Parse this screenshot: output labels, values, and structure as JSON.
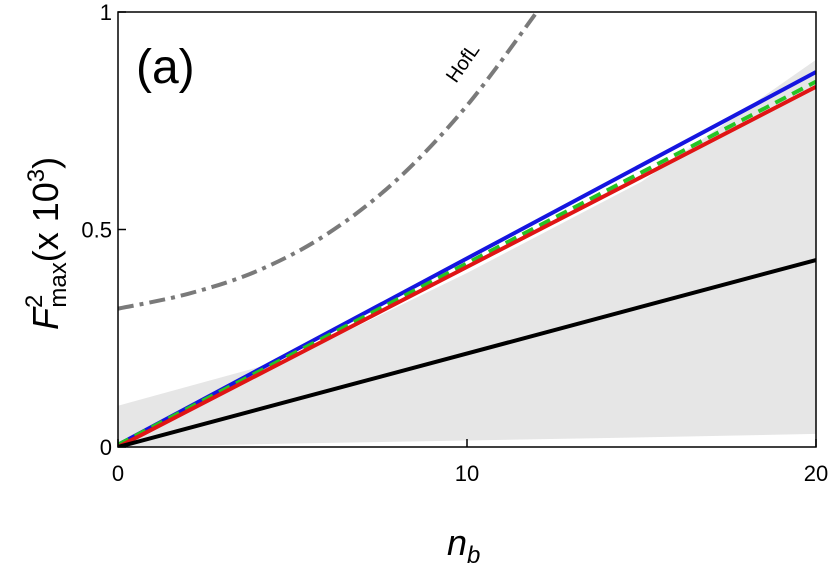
{
  "chart_data": {
    "type": "line",
    "panel_label": "(a)",
    "x": [
      0,
      20
    ],
    "xlabel_main": "n",
    "xlabel_sub": "b",
    "ylabel_main": "F",
    "ylabel_sup": "2",
    "ylabel_sub": "max",
    "ylabel_units": "(x 10",
    "ylabel_units_exp": "3",
    "ylabel_units_close": ")",
    "xlim": [
      0,
      20
    ],
    "ylim": [
      0,
      1
    ],
    "xticks": [
      0,
      10,
      20
    ],
    "xtick_labels": [
      "0",
      "10",
      "20"
    ],
    "yticks": [
      0,
      0.5,
      1
    ],
    "ytick_labels": [
      "0",
      "0.5",
      "1"
    ],
    "grid": false,
    "band": {
      "color": "#e6e6e6",
      "upper": [
        [
          0,
          0.095
        ],
        [
          5,
          0.205
        ],
        [
          10,
          0.4
        ],
        [
          15,
          0.61
        ],
        [
          20,
          0.89
        ]
      ],
      "lower": [
        [
          0,
          0.0
        ],
        [
          5,
          0.008
        ],
        [
          10,
          0.015
        ],
        [
          15,
          0.022
        ],
        [
          20,
          0.03
        ]
      ]
    },
    "series": [
      {
        "color": "#7a7a7a",
        "style": "dashdot",
        "curve_label": "HofL",
        "x": [
          0,
          2,
          4,
          6,
          8,
          10,
          12
        ],
        "y": [
          0.318,
          0.352,
          0.405,
          0.49,
          0.615,
          0.785,
          1.0
        ]
      },
      {
        "color": "#1515e0",
        "style": "solid",
        "x": [
          0,
          20
        ],
        "y": [
          0.005,
          0.862
        ]
      },
      {
        "color": "#25c425",
        "style": "dashed",
        "x": [
          0,
          20
        ],
        "y": [
          0.005,
          0.84
        ]
      },
      {
        "color": "#e01515",
        "style": "solid",
        "x": [
          0,
          20
        ],
        "y": [
          0.0,
          0.828
        ]
      },
      {
        "color": "#000000",
        "style": "solid",
        "x": [
          0,
          20
        ],
        "y": [
          0.0,
          0.43
        ]
      }
    ]
  }
}
